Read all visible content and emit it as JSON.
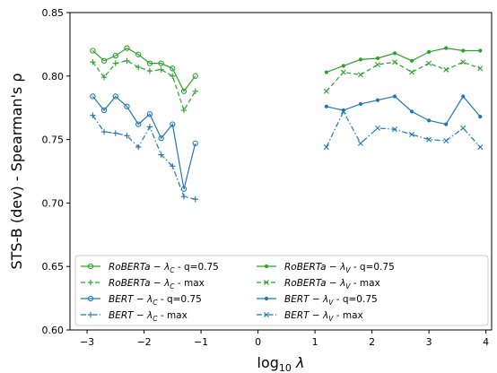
{
  "chart_data": {
    "type": "line",
    "xlabel": "log₁₀ λ",
    "ylabel": "STS-B (dev) - Spearman's ρ",
    "xlim": [
      -3.3,
      4.1
    ],
    "ylim": [
      0.6,
      0.85
    ],
    "xticks": [
      -3,
      -2,
      -1,
      0,
      1,
      2,
      3,
      4
    ],
    "xtick_labels": [
      "−3",
      "−2",
      "−1",
      "0",
      "1",
      "2",
      "3",
      "4"
    ],
    "yticks": [
      0.6,
      0.65,
      0.7,
      0.75,
      0.8,
      0.85
    ],
    "ytick_labels": [
      "0.60",
      "0.65",
      "0.70",
      "0.75",
      "0.80",
      "0.85"
    ],
    "grid": false,
    "legend_position": "bottom, spanning width in two columns",
    "colors": {
      "green": "#2ca02c",
      "blue": "#1f77b4"
    },
    "series": [
      {
        "name": "RoBERTa − λC - q=0.75",
        "color": "#2ca02c",
        "dash": "solid",
        "marker": "circle-open",
        "x": [
          -2.9,
          -2.7,
          -2.5,
          -2.3,
          -2.1,
          -1.9,
          -1.7,
          -1.5,
          -1.3,
          -1.1
        ],
        "y": [
          0.82,
          0.812,
          0.816,
          0.822,
          0.817,
          0.81,
          0.81,
          0.806,
          0.788,
          0.8
        ]
      },
      {
        "name": "RoBERTa − λC - max",
        "color": "#2ca02c",
        "dash": "dashed",
        "marker": "plus",
        "x": [
          -2.9,
          -2.7,
          -2.5,
          -2.3,
          -2.1,
          -1.9,
          -1.7,
          -1.5,
          -1.3,
          -1.1
        ],
        "y": [
          0.811,
          0.799,
          0.81,
          0.812,
          0.807,
          0.804,
          0.805,
          0.8,
          0.773,
          0.788
        ]
      },
      {
        "name": "BERT − λC - q=0.75",
        "color": "#1f77b4",
        "dash": "solid",
        "marker": "circle-open",
        "x": [
          -2.9,
          -2.7,
          -2.5,
          -2.3,
          -2.1,
          -1.9,
          -1.7,
          -1.5,
          -1.3,
          -1.1
        ],
        "y": [
          0.784,
          0.773,
          0.784,
          0.776,
          0.762,
          0.77,
          0.751,
          0.762,
          0.711,
          0.747
        ]
      },
      {
        "name": "BERT − λC - max",
        "color": "#1f77b4",
        "dash": "dashdot",
        "marker": "plus",
        "x": [
          -2.9,
          -2.7,
          -2.5,
          -2.3,
          -2.1,
          -1.9,
          -1.7,
          -1.5,
          -1.3,
          -1.1
        ],
        "y": [
          0.769,
          0.756,
          0.755,
          0.753,
          0.744,
          0.76,
          0.738,
          0.729,
          0.705,
          0.703
        ]
      },
      {
        "name": "RoBERTa − λV - q=0.75",
        "color": "#2ca02c",
        "dash": "solid",
        "marker": "dot",
        "x": [
          1.2,
          1.5,
          1.8,
          2.1,
          2.4,
          2.7,
          3.0,
          3.3,
          3.6,
          3.9
        ],
        "y": [
          0.803,
          0.808,
          0.813,
          0.814,
          0.818,
          0.812,
          0.819,
          0.822,
          0.82,
          0.82
        ]
      },
      {
        "name": "RoBERTa − λV - max",
        "color": "#2ca02c",
        "dash": "dashed",
        "marker": "x",
        "x": [
          1.2,
          1.5,
          1.8,
          2.1,
          2.4,
          2.7,
          3.0,
          3.3,
          3.6,
          3.9
        ],
        "y": [
          0.788,
          0.803,
          0.801,
          0.809,
          0.811,
          0.803,
          0.81,
          0.805,
          0.811,
          0.806
        ]
      },
      {
        "name": "BERT − λV - q=0.75",
        "color": "#1f77b4",
        "dash": "solid",
        "marker": "dot",
        "x": [
          1.2,
          1.5,
          1.8,
          2.1,
          2.4,
          2.7,
          3.0,
          3.3,
          3.6,
          3.9
        ],
        "y": [
          0.776,
          0.773,
          0.778,
          0.781,
          0.784,
          0.772,
          0.765,
          0.762,
          0.784,
          0.768
        ]
      },
      {
        "name": "BERT − λV - max",
        "color": "#1f77b4",
        "dash": "dashdot",
        "marker": "x",
        "x": [
          1.2,
          1.5,
          1.8,
          2.1,
          2.4,
          2.7,
          3.0,
          3.3,
          3.6,
          3.9
        ],
        "y": [
          0.744,
          0.772,
          0.747,
          0.759,
          0.758,
          0.754,
          0.75,
          0.749,
          0.759,
          0.744
        ]
      }
    ]
  },
  "legend": [
    {
      "model": "RoBERTa",
      "lambda": "C",
      "suffix": " - q=0.75"
    },
    {
      "model": "RoBERTa",
      "lambda": "V",
      "suffix": " - q=0.75"
    },
    {
      "model": "RoBERTa",
      "lambda": "C",
      "suffix": " - max"
    },
    {
      "model": "RoBERTa",
      "lambda": "V",
      "suffix": " - max"
    },
    {
      "model": "BERT",
      "lambda": "C",
      "suffix": " - q=0.75"
    },
    {
      "model": "BERT",
      "lambda": "V",
      "suffix": " - q=0.75"
    },
    {
      "model": "BERT",
      "lambda": "C",
      "suffix": " - max"
    },
    {
      "model": "BERT",
      "lambda": "V",
      "suffix": " - max"
    }
  ]
}
